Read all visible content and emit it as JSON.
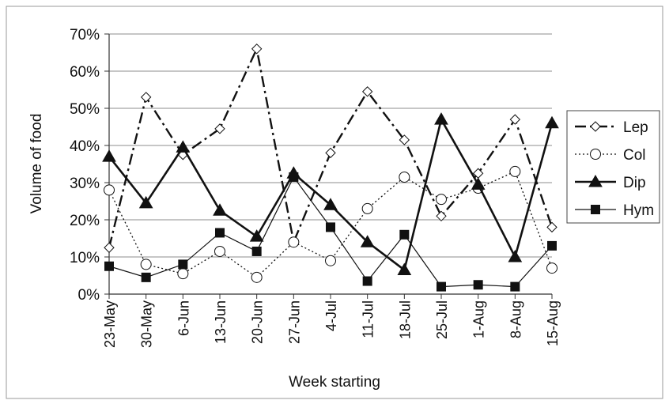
{
  "chart_data": {
    "type": "line",
    "xlabel": "Week starting",
    "ylabel": "Volume of food",
    "categories": [
      "23-May",
      "30-May",
      "6-Jun",
      "13-Jun",
      "20-Jun",
      "27-Jun",
      "4-Jul",
      "11-Jul",
      "18-Jul",
      "25-Jul",
      "1-Aug",
      "8-Aug",
      "15-Aug"
    ],
    "ylim": [
      0,
      70
    ],
    "yticks": [
      0,
      10,
      20,
      30,
      40,
      50,
      60,
      70
    ],
    "ytick_labels": [
      "0%",
      "10%",
      "20%",
      "30%",
      "40%",
      "50%",
      "60%",
      "70%"
    ],
    "grid": true,
    "legend_position": "right",
    "series": [
      {
        "name": "Lep",
        "values": [
          12.5,
          53,
          37.5,
          44.5,
          66,
          14,
          38,
          54.5,
          41.5,
          21,
          32.5,
          47,
          18
        ],
        "marker": "diamond-open",
        "line": "dash-dot",
        "color": "#111111"
      },
      {
        "name": "Col",
        "values": [
          28,
          8,
          5.5,
          11.5,
          4.5,
          14,
          9,
          23,
          31.5,
          25.5,
          28.5,
          33,
          7
        ],
        "marker": "circle-open",
        "line": "dotted",
        "color": "#111111"
      },
      {
        "name": "Dip",
        "values": [
          37,
          24.5,
          39.5,
          22.5,
          15.5,
          32.5,
          24,
          14,
          6.5,
          47,
          29.5,
          10,
          46
        ],
        "marker": "triangle-filled",
        "line": "solid-thick",
        "color": "#111111"
      },
      {
        "name": "Hym",
        "values": [
          7.5,
          4.5,
          8,
          16.5,
          11.5,
          31.5,
          18,
          3.5,
          16,
          2,
          2.5,
          2,
          13
        ],
        "marker": "square-filled",
        "line": "solid-thin",
        "color": "#111111"
      }
    ]
  }
}
